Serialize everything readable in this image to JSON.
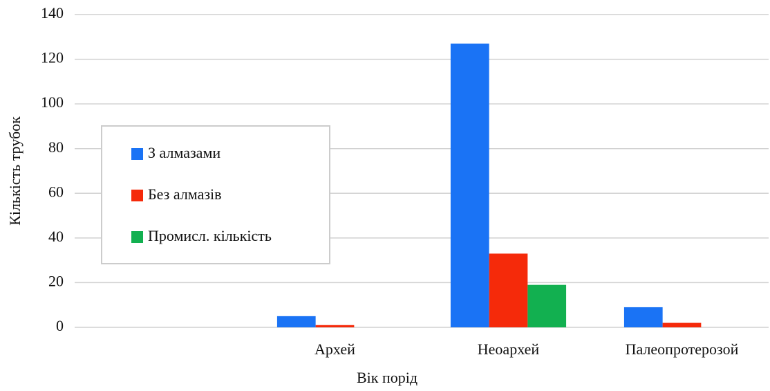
{
  "chart_data": {
    "type": "bar",
    "x_label": "Вік порід",
    "y_label": "Кількість трубок",
    "categories": [
      null,
      "Архей",
      "Неоархей",
      "Палеопротерозой"
    ],
    "series": [
      {
        "name": "З алмазами",
        "color": "#1a73f5",
        "values": [
          null,
          5,
          127,
          9
        ]
      },
      {
        "name": "Без алмазів",
        "color": "#f52a0a",
        "values": [
          null,
          1,
          33,
          2
        ]
      },
      {
        "name": "Промисл. кількість",
        "color": "#12b050",
        "values": [
          null,
          0,
          19,
          0
        ]
      }
    ],
    "ylim": [
      0,
      140
    ],
    "yticks": [
      0,
      20,
      40,
      60,
      80,
      100,
      120,
      140
    ],
    "grid": true,
    "legend": "left"
  }
}
